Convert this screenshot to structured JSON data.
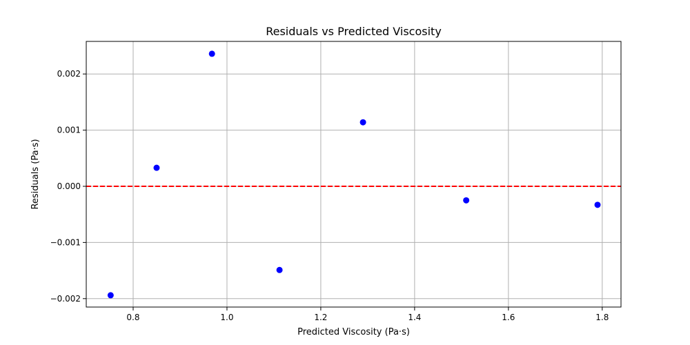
{
  "chart_data": {
    "type": "scatter",
    "title": "Residuals vs Predicted Viscosity",
    "xlabel": "Predicted Viscosity (Pa·s)",
    "ylabel": "Residuals (Pa·s)",
    "xlim": [
      0.7,
      1.84
    ],
    "ylim": [
      -0.00215,
      0.00258
    ],
    "x_ticks": [
      0.8,
      1.0,
      1.2,
      1.4,
      1.6,
      1.8
    ],
    "x_tick_labels": [
      "0.8",
      "1.0",
      "1.2",
      "1.4",
      "1.6",
      "1.8"
    ],
    "y_ticks": [
      -0.002,
      -0.001,
      0.0,
      0.001,
      0.002
    ],
    "y_tick_labels": [
      "−0.002",
      "−0.001",
      "0.000",
      "0.001",
      "0.002"
    ],
    "grid": true,
    "reference_line": {
      "y": 0,
      "style": "dashed",
      "color": "#ff0000"
    },
    "series": [
      {
        "color": "#0000ff",
        "x": [
          0.752,
          0.85,
          0.968,
          1.112,
          1.29,
          1.51,
          1.79
        ],
        "y": [
          -0.00194,
          0.00033,
          0.00236,
          -0.00149,
          0.00114,
          -0.00025,
          -0.00033
        ]
      }
    ]
  }
}
